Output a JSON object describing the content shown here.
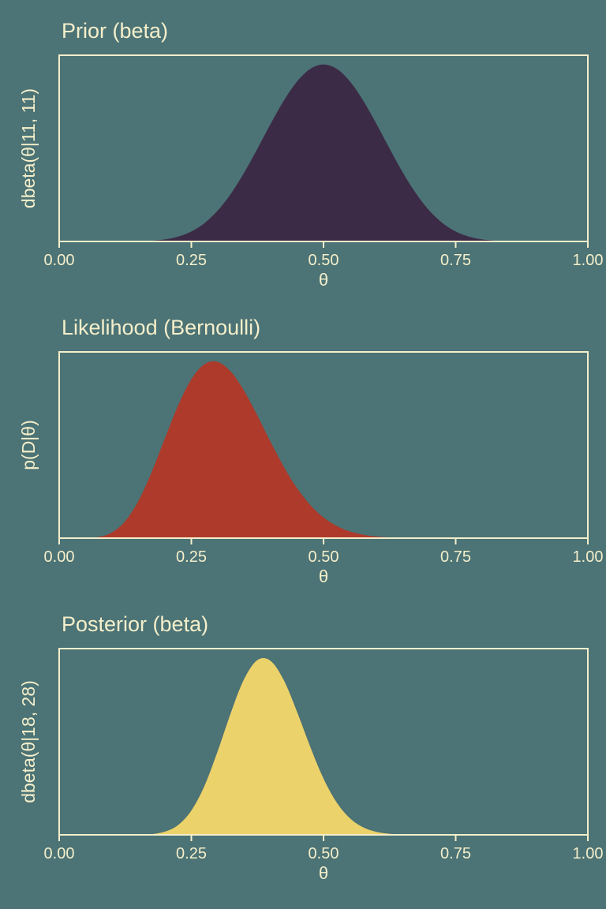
{
  "page": {
    "background_color": "#4C7375",
    "text_color": "#F4EFCB"
  },
  "chart_data": [
    {
      "type": "area",
      "title": "Prior (beta)",
      "xlabel": "θ",
      "ylabel": "dbeta(θ|11, 11)",
      "fill_color": "#3B2B46",
      "xlim": [
        0,
        1
      ],
      "xticks": [
        0,
        0.25,
        0.5,
        0.75,
        1
      ],
      "xtick_labels": [
        "0.00",
        "0.25",
        "0.50",
        "0.75",
        "1.00"
      ],
      "grid": false,
      "legend": false,
      "x": [
        0,
        0.025,
        0.05,
        0.075,
        0.1,
        0.125,
        0.15,
        0.175,
        0.2,
        0.225,
        0.25,
        0.275,
        0.3,
        0.325,
        0.35,
        0.375,
        0.4,
        0.425,
        0.45,
        0.475,
        0.5,
        0.525,
        0.55,
        0.575,
        0.6,
        0.625,
        0.65,
        0.675,
        0.7,
        0.725,
        0.75,
        0.775,
        0.8,
        0.825,
        0.85,
        0.875,
        0.9,
        0.925,
        0.95,
        0.975,
        1
      ],
      "y": [
        0,
        0,
        0,
        0,
        0,
        0.0003,
        0.0012,
        0.0041,
        0.0115,
        0.0272,
        0.0563,
        0.1041,
        0.1749,
        0.2707,
        0.3895,
        0.5246,
        0.665,
        0.7964,
        0.9044,
        0.9753,
        1,
        0.9753,
        0.9044,
        0.7964,
        0.665,
        0.5246,
        0.3895,
        0.2707,
        0.1749,
        0.1041,
        0.0563,
        0.0272,
        0.0115,
        0.0041,
        0.0012,
        0.0003,
        0,
        0,
        0,
        0,
        0
      ]
    },
    {
      "type": "area",
      "title": "Likelihood (Bernoulli)",
      "xlabel": "θ",
      "ylabel": "p(D|θ)",
      "fill_color": "#AE3A2B",
      "xlim": [
        0,
        1
      ],
      "xticks": [
        0,
        0.25,
        0.5,
        0.75,
        1
      ],
      "xtick_labels": [
        "0.00",
        "0.25",
        "0.50",
        "0.75",
        "1.00"
      ],
      "grid": false,
      "legend": false,
      "x": [
        0,
        0.025,
        0.05,
        0.075,
        0.1,
        0.125,
        0.15,
        0.175,
        0.2,
        0.225,
        0.25,
        0.275,
        0.3,
        0.325,
        0.35,
        0.375,
        0.4,
        0.425,
        0.45,
        0.475,
        0.5,
        0.525,
        0.55,
        0.575,
        0.6,
        0.625,
        0.65,
        0.675,
        0.7,
        0.725,
        0.75,
        0.775,
        0.8,
        0.825,
        0.85,
        0.875,
        0.9,
        0.925,
        0.95,
        0.975,
        1
      ],
      "y": [
        0,
        0,
        0.0006,
        0.007,
        0.0326,
        0.0964,
        0.211,
        0.374,
        0.5643,
        0.7502,
        0.8982,
        0.9836,
        0.9961,
        0.94,
        0.8313,
        0.6916,
        0.5429,
        0.4026,
        0.2821,
        0.1868,
        0.1167,
        0.0687,
        0.0379,
        0.0196,
        0.0094,
        0.0042,
        0.0017,
        0.0007,
        0.0002,
        0.0001,
        0,
        0,
        0,
        0,
        0,
        0,
        0,
        0,
        0,
        0,
        0
      ]
    },
    {
      "type": "area",
      "title": "Posterior (beta)",
      "xlabel": "θ",
      "ylabel": "dbeta(θ|18, 28)",
      "fill_color": "#ECD26B",
      "xlim": [
        0,
        1
      ],
      "xticks": [
        0,
        0.25,
        0.5,
        0.75,
        1
      ],
      "xtick_labels": [
        "0.00",
        "0.25",
        "0.50",
        "0.75",
        "1.00"
      ],
      "grid": false,
      "legend": false,
      "x": [
        0,
        0.025,
        0.05,
        0.075,
        0.1,
        0.125,
        0.15,
        0.175,
        0.2,
        0.225,
        0.25,
        0.275,
        0.3,
        0.325,
        0.35,
        0.375,
        0.4,
        0.425,
        0.45,
        0.475,
        0.5,
        0.525,
        0.55,
        0.575,
        0.6,
        0.625,
        0.65,
        0.675,
        0.7,
        0.725,
        0.75,
        0.775,
        0.8,
        0.825,
        0.85,
        0.875,
        0.9,
        0.925,
        0.95,
        0.975,
        1
      ],
      "y": [
        0,
        0,
        0,
        0,
        0,
        0.0001,
        0.0007,
        0.0042,
        0.0178,
        0.0557,
        0.1375,
        0.2782,
        0.4745,
        0.6929,
        0.8815,
        0.9878,
        0.983,
        0.8731,
        0.6948,
        0.4961,
        0.3178,
        0.1823,
        0.0935,
        0.0425,
        0.017,
        0.006,
        0.0018,
        0.0005,
        0.0001,
        0,
        0,
        0,
        0,
        0,
        0,
        0,
        0,
        0,
        0,
        0,
        0
      ]
    }
  ]
}
